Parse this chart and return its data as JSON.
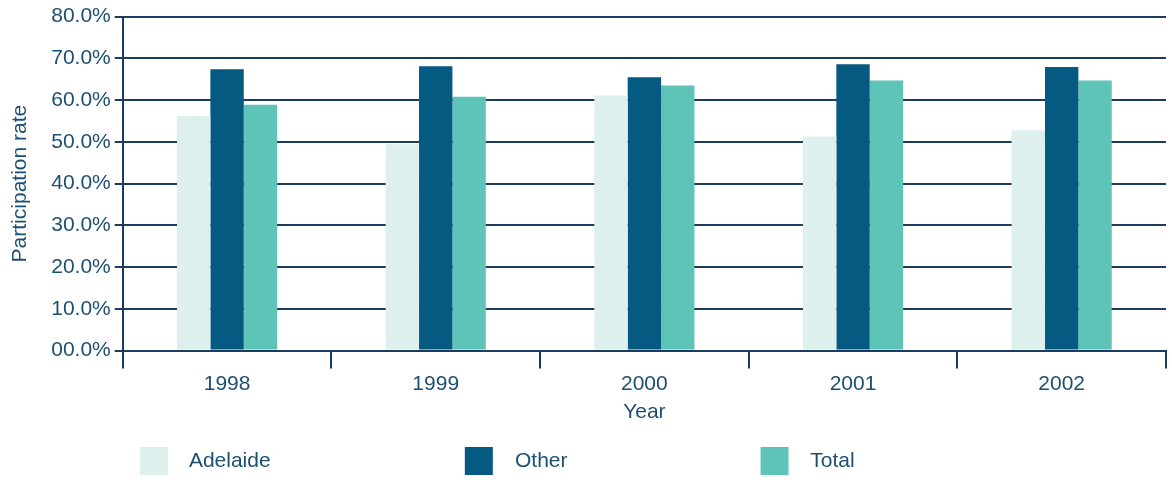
{
  "chart_data": {
    "type": "bar",
    "xlabel": "Year",
    "ylabel": "Participation rate",
    "categories": [
      "1998",
      "1999",
      "2000",
      "2001",
      "2002"
    ],
    "series": [
      {
        "name": "Adelaide",
        "color": "#ddf0ee",
        "values": [
          56.2,
          49.4,
          61.1,
          51.3,
          52.8
        ]
      },
      {
        "name": "Other",
        "color": "#045a80",
        "values": [
          67.4,
          68.1,
          65.5,
          68.6,
          67.9
        ]
      },
      {
        "name": "Total",
        "color": "#5fc4b8",
        "values": [
          58.9,
          60.8,
          63.5,
          64.7,
          64.7
        ]
      }
    ],
    "ylim": [
      0,
      80
    ],
    "yticks": [
      {
        "value": 0,
        "label": "00.0%"
      },
      {
        "value": 10,
        "label": "10.0%"
      },
      {
        "value": 20,
        "label": "20.0%"
      },
      {
        "value": 30,
        "label": "30.0%"
      },
      {
        "value": 40,
        "label": "40.0%"
      },
      {
        "value": 50,
        "label": "50.0%"
      },
      {
        "value": 60,
        "label": "60.0%"
      },
      {
        "value": 70,
        "label": "70.0%"
      },
      {
        "value": 80,
        "label": "80.0%"
      }
    ],
    "grid": "y",
    "legend": "bottom"
  }
}
